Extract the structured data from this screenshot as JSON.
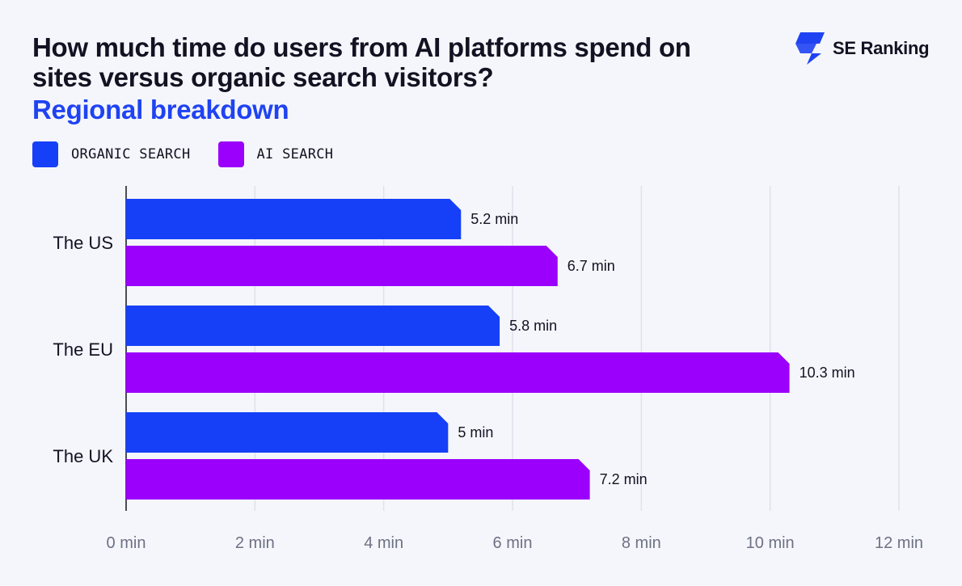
{
  "header": {
    "title": "How much time do users from AI platforms spend on sites versus organic search visitors?",
    "subtitle": "Regional breakdown",
    "brand": "SE Ranking"
  },
  "colors": {
    "organic": "#1640f7",
    "ai": "#9a00fb",
    "grid": "#dfe1ec",
    "axis": "#111322",
    "tick": "#6c7184",
    "brand": "#1f43f2"
  },
  "chart_data": {
    "type": "bar",
    "orientation": "horizontal",
    "categories": [
      "The US",
      "The EU",
      "The UK"
    ],
    "series": [
      {
        "name": "ORGANIC SEARCH",
        "values": [
          5.2,
          5.8,
          5
        ],
        "labels": [
          "5.2 min",
          "5.8 min",
          "5 min"
        ]
      },
      {
        "name": "AI SEARCH",
        "values": [
          6.7,
          10.3,
          7.2
        ],
        "labels": [
          "6.7 min",
          "10.3 min",
          "7.2 min"
        ]
      }
    ],
    "xlim": [
      0,
      12
    ],
    "xticks": [
      {
        "value": 0,
        "label": "0 min"
      },
      {
        "value": 2,
        "label": "2 min"
      },
      {
        "value": 4,
        "label": "4 min"
      },
      {
        "value": 6,
        "label": "6 min"
      },
      {
        "value": 8,
        "label": "8 min"
      },
      {
        "value": 10,
        "label": "10 min"
      },
      {
        "value": 12,
        "label": "12 min"
      }
    ],
    "grid": true,
    "legend": "top-left"
  }
}
